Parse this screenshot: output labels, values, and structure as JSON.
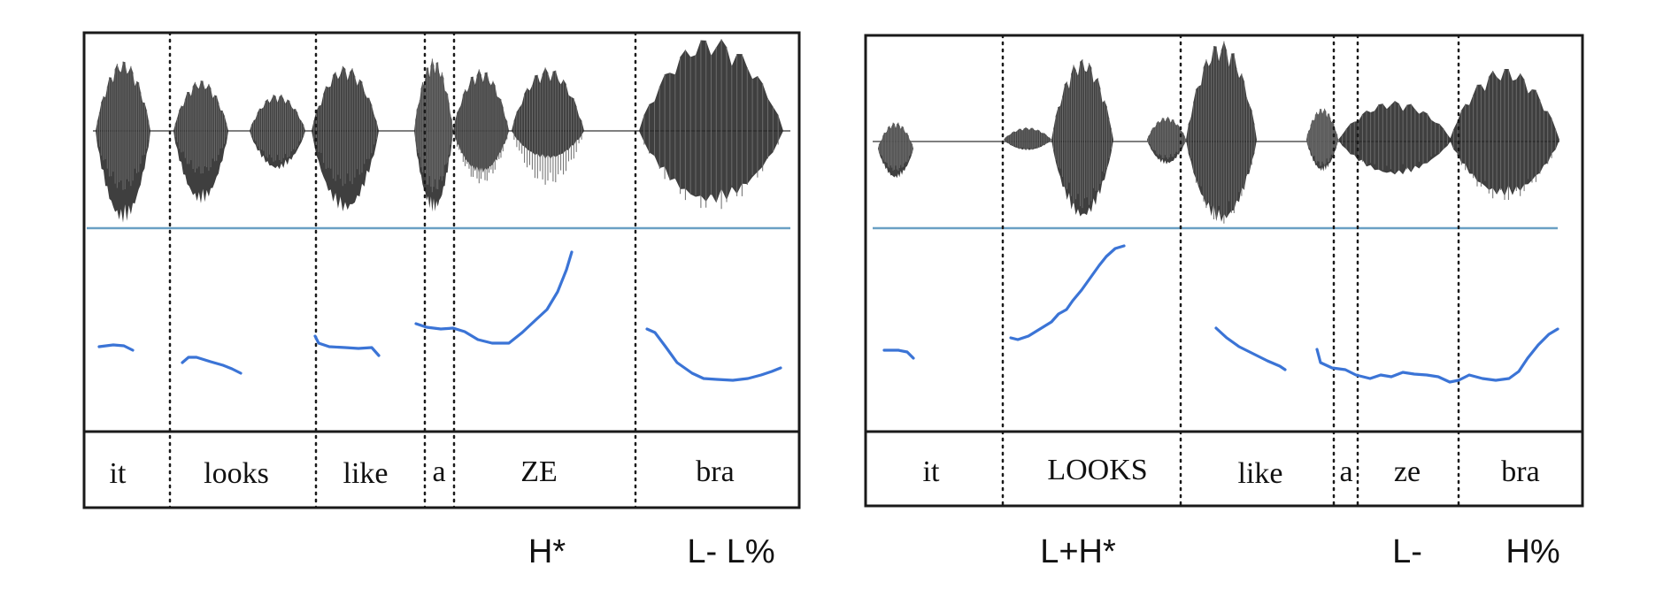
{
  "panels": [
    {
      "id": "left",
      "words": [
        "it",
        "looks",
        "like",
        "a",
        "ZE",
        "bra"
      ],
      "tones": [
        "H*",
        "L- L%"
      ]
    },
    {
      "id": "right",
      "words": [
        "it",
        "LOOKS",
        "like",
        "a",
        "ze",
        "bra"
      ],
      "tones": [
        "L+H*",
        "L-",
        "H%"
      ]
    }
  ],
  "colors": {
    "pitch_track": "#3b74d6",
    "waveform": "#2a2a2a",
    "baseline": "#6aa0c4",
    "frame": "#1a1a1a"
  }
}
